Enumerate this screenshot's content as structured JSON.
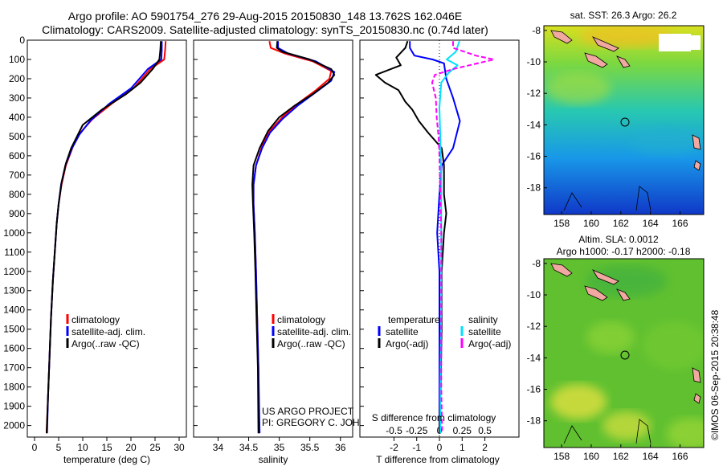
{
  "header": {
    "line1": "Argo profile: AO 5901754_276 29-Aug-2015 20150830_148 13.762S 162.046E",
    "line2": "Climatology: CARS2009. Satellite-adjusted climatology: synTS_20150830.nc (0.74d later)"
  },
  "chart_data": [
    {
      "type": "line",
      "xlabel": "temperature (deg C)",
      "ylabel": "",
      "xlim": [
        -1.5,
        31.5
      ],
      "ylim": [
        2060,
        0
      ],
      "xticks": [
        0,
        5,
        10,
        15,
        20,
        25,
        30
      ],
      "yticks": [
        0,
        100,
        200,
        300,
        400,
        500,
        600,
        700,
        800,
        900,
        1000,
        1100,
        1200,
        1300,
        1400,
        1500,
        1600,
        1700,
        1800,
        1900,
        2000
      ],
      "legend": [
        "climatology",
        "satellite-adj. clim.",
        "Argo(..raw -QC)"
      ],
      "series": [
        {
          "name": "climatology",
          "color": "#ff0000",
          "points": [
            [
              27.2,
              5
            ],
            [
              27.1,
              50
            ],
            [
              26.9,
              100
            ],
            [
              24,
              150
            ],
            [
              20.5,
              250
            ],
            [
              16,
              330
            ],
            [
              12,
              410
            ],
            [
              9.5,
              480
            ],
            [
              8,
              550
            ],
            [
              6.5,
              650
            ],
            [
              5.6,
              750
            ],
            [
              5,
              850
            ],
            [
              4.6,
              950
            ],
            [
              4.2,
              1100
            ],
            [
              3.8,
              1250
            ],
            [
              3.4,
              1450
            ],
            [
              3.1,
              1650
            ],
            [
              2.8,
              1850
            ],
            [
              2.5,
              2040
            ]
          ]
        },
        {
          "name": "satellite-adj. clim.",
          "color": "#0000ff",
          "points": [
            [
              26.4,
              5
            ],
            [
              26.4,
              50
            ],
            [
              26.3,
              100
            ],
            [
              23.5,
              150
            ],
            [
              20,
              250
            ],
            [
              15.5,
              330
            ],
            [
              11.5,
              420
            ],
            [
              9.3,
              490
            ],
            [
              7.8,
              560
            ],
            [
              6.4,
              650
            ],
            [
              5.5,
              750
            ],
            [
              5,
              850
            ],
            [
              4.6,
              950
            ],
            [
              4.2,
              1100
            ],
            [
              3.8,
              1250
            ],
            [
              3.4,
              1450
            ],
            [
              3.1,
              1650
            ],
            [
              2.8,
              1850
            ],
            [
              2.6,
              2040
            ]
          ]
        },
        {
          "name": "Argo(..raw -QC)",
          "color": "#000000",
          "points": [
            [
              26.2,
              5
            ],
            [
              26.1,
              50
            ],
            [
              25.9,
              100
            ],
            [
              24.5,
              150
            ],
            [
              22,
              220
            ],
            [
              19,
              280
            ],
            [
              16.5,
              320
            ],
            [
              14,
              360
            ],
            [
              11.5,
              410
            ],
            [
              10,
              440
            ],
            [
              8.8,
              500
            ],
            [
              7.6,
              560
            ],
            [
              6.5,
              640
            ],
            [
              5.6,
              740
            ],
            [
              5,
              850
            ],
            [
              4.6,
              950
            ],
            [
              4.2,
              1100
            ],
            [
              3.8,
              1250
            ],
            [
              3.4,
              1450
            ],
            [
              3.1,
              1650
            ],
            [
              2.8,
              1850
            ],
            [
              2.5,
              2040
            ]
          ]
        }
      ]
    },
    {
      "type": "line",
      "xlabel": "salinity",
      "ylabel": "",
      "xlim": [
        33.6,
        36.2
      ],
      "ylim": [
        2060,
        0
      ],
      "xticks": [
        34,
        34.5,
        35,
        35.5,
        36
      ],
      "xticklabels": [
        "34",
        "34.5",
        "35",
        "35.5",
        "36"
      ],
      "legend": [
        "climatology",
        "satellite-adj. clim.",
        "Argo(..raw -QC)"
      ],
      "series": [
        {
          "name": "climatology",
          "color": "#ff0000",
          "points": [
            [
              34.84,
              5
            ],
            [
              34.86,
              40
            ],
            [
              35.1,
              70
            ],
            [
              35.55,
              110
            ],
            [
              35.85,
              160
            ],
            [
              35.82,
              200
            ],
            [
              35.6,
              260
            ],
            [
              35.3,
              330
            ],
            [
              35.05,
              400
            ],
            [
              34.85,
              470
            ],
            [
              34.72,
              550
            ],
            [
              34.62,
              650
            ],
            [
              34.58,
              750
            ],
            [
              34.58,
              850
            ],
            [
              34.6,
              1000
            ],
            [
              34.62,
              1200
            ],
            [
              34.64,
              1450
            ],
            [
              34.66,
              1700
            ],
            [
              34.67,
              2040
            ]
          ]
        },
        {
          "name": "satellite-adj. clim.",
          "color": "#0000ff",
          "points": [
            [
              34.98,
              5
            ],
            [
              34.98,
              40
            ],
            [
              35.15,
              70
            ],
            [
              35.6,
              110
            ],
            [
              35.9,
              165
            ],
            [
              35.85,
              210
            ],
            [
              35.6,
              270
            ],
            [
              35.3,
              340
            ],
            [
              35.05,
              410
            ],
            [
              34.85,
              480
            ],
            [
              34.72,
              560
            ],
            [
              34.62,
              650
            ],
            [
              34.58,
              750
            ],
            [
              34.58,
              850
            ],
            [
              34.6,
              1000
            ],
            [
              34.62,
              1200
            ],
            [
              34.64,
              1450
            ],
            [
              34.66,
              1700
            ],
            [
              34.68,
              2040
            ]
          ]
        },
        {
          "name": "Argo(..raw -QC)",
          "color": "#000000",
          "points": [
            [
              34.97,
              5
            ],
            [
              34.96,
              40
            ],
            [
              35.05,
              60
            ],
            [
              35.5,
              100
            ],
            [
              35.85,
              150
            ],
            [
              35.9,
              180
            ],
            [
              35.8,
              220
            ],
            [
              35.55,
              280
            ],
            [
              35.25,
              340
            ],
            [
              35.0,
              400
            ],
            [
              34.82,
              470
            ],
            [
              34.68,
              560
            ],
            [
              34.58,
              650
            ],
            [
              34.56,
              750
            ],
            [
              34.57,
              850
            ],
            [
              34.59,
              1000
            ],
            [
              34.61,
              1200
            ],
            [
              34.63,
              1450
            ],
            [
              34.65,
              1700
            ],
            [
              34.66,
              2040
            ]
          ]
        }
      ],
      "annotations": [
        "US ARGO PROJECT",
        "PI: GREGORY C. JOHNSON"
      ]
    },
    {
      "type": "line",
      "xlabel": "T difference from climatology",
      "x2label": "S difference from climatology",
      "ylim": [
        2060,
        0
      ],
      "xlim_T": [
        -3.5,
        3.5
      ],
      "xticks_T": [
        -2,
        -1,
        0,
        1,
        2
      ],
      "xlim_S": [
        -0.875,
        0.875
      ],
      "xticks_S": [
        -0.5,
        -0.25,
        0,
        0.25,
        0.5
      ],
      "xticklabels_S": [
        "-0.5",
        "-0.25",
        "0",
        "0.25",
        "0.5"
      ],
      "legend": {
        "temperature_title": "temperature",
        "salinity_title": "salinity",
        "satellite": "satellite",
        "argo_adj": "Argo(-adj)"
      },
      "series": [
        {
          "name": "temperature satellite",
          "axis": "T",
          "color": "#0000ff",
          "points": [
            [
              -1.3,
              5
            ],
            [
              -1.3,
              40
            ],
            [
              -1.1,
              80
            ],
            [
              -0.3,
              100
            ],
            [
              0.2,
              120
            ],
            [
              0.3,
              200
            ],
            [
              0.6,
              300
            ],
            [
              0.9,
              420
            ],
            [
              0.6,
              560
            ],
            [
              0.1,
              650
            ],
            [
              0,
              800
            ],
            [
              -0.1,
              1000
            ],
            [
              0,
              1200
            ],
            [
              0,
              1500
            ],
            [
              0,
              1800
            ],
            [
              0,
              2040
            ]
          ]
        },
        {
          "name": "temperature Argo(-adj)",
          "axis": "T",
          "color": "#000000",
          "points": [
            [
              -1.4,
              5
            ],
            [
              -1.5,
              40
            ],
            [
              -1.9,
              90
            ],
            [
              -1.7,
              130
            ],
            [
              -2.8,
              180
            ],
            [
              -2.4,
              220
            ],
            [
              -1.8,
              260
            ],
            [
              -1.5,
              320
            ],
            [
              -1.2,
              360
            ],
            [
              -0.9,
              420
            ],
            [
              -0.5,
              480
            ],
            [
              0.1,
              560
            ],
            [
              0.2,
              650
            ],
            [
              0.2,
              800
            ],
            [
              0.3,
              900
            ],
            [
              0.2,
              1000
            ],
            [
              0.1,
              1200
            ],
            [
              0.1,
              1500
            ],
            [
              0.05,
              1800
            ],
            [
              0,
              2040
            ]
          ]
        },
        {
          "name": "salinity satellite",
          "axis": "S",
          "color": "#00e0ff",
          "points": [
            [
              0.22,
              5
            ],
            [
              0.18,
              60
            ],
            [
              0.08,
              100
            ],
            [
              0.2,
              130
            ],
            [
              0.1,
              170
            ],
            [
              0.02,
              220
            ],
            [
              0,
              350
            ],
            [
              0.01,
              500
            ],
            [
              0.02,
              700
            ],
            [
              0.02,
              1000
            ],
            [
              0.02,
              1400
            ],
            [
              0.01,
              1800
            ],
            [
              0.01,
              2040
            ]
          ]
        },
        {
          "name": "salinity Argo(-adj)",
          "axis": "S",
          "color": "#ff00ff",
          "points": [
            [
              0.15,
              5
            ],
            [
              0.15,
              40
            ],
            [
              0.4,
              80
            ],
            [
              0.6,
              100
            ],
            [
              0.15,
              150
            ],
            [
              -0.05,
              180
            ],
            [
              -0.08,
              220
            ],
            [
              -0.04,
              300
            ],
            [
              -0.03,
              400
            ],
            [
              -0.01,
              500
            ],
            [
              0,
              600
            ],
            [
              0.01,
              800
            ],
            [
              0.02,
              1000
            ],
            [
              0.02,
              1400
            ],
            [
              0.02,
              1800
            ],
            [
              0.03,
              2040
            ]
          ]
        }
      ]
    }
  ],
  "maps": {
    "sst": {
      "title": "sat. SST: 26.3 Argo: 26.2",
      "yticks": [
        -8,
        -10,
        -12,
        -14,
        -16,
        -18
      ],
      "xticks": [
        158,
        160,
        162,
        164,
        166
      ],
      "lon_range": [
        156.8,
        167.6
      ],
      "lat_range": [
        -19.7,
        -7.7
      ],
      "argo_position": [
        162.046,
        -13.762
      ]
    },
    "sla": {
      "title_line1": "Altim. SLA: 0.0012",
      "title_line2": "Argo h1000: -0.17 h2000: -0.18",
      "yticks": [
        -8,
        -10,
        -12,
        -14,
        -16,
        -18
      ],
      "xticks": [
        158,
        160,
        162,
        164,
        166
      ],
      "lon_range": [
        156.8,
        167.6
      ],
      "lat_range": [
        -19.7,
        -7.7
      ],
      "argo_position": [
        162.046,
        -13.762
      ]
    }
  },
  "credit": "©IMOS 06-Sep-2015 20:38:48"
}
